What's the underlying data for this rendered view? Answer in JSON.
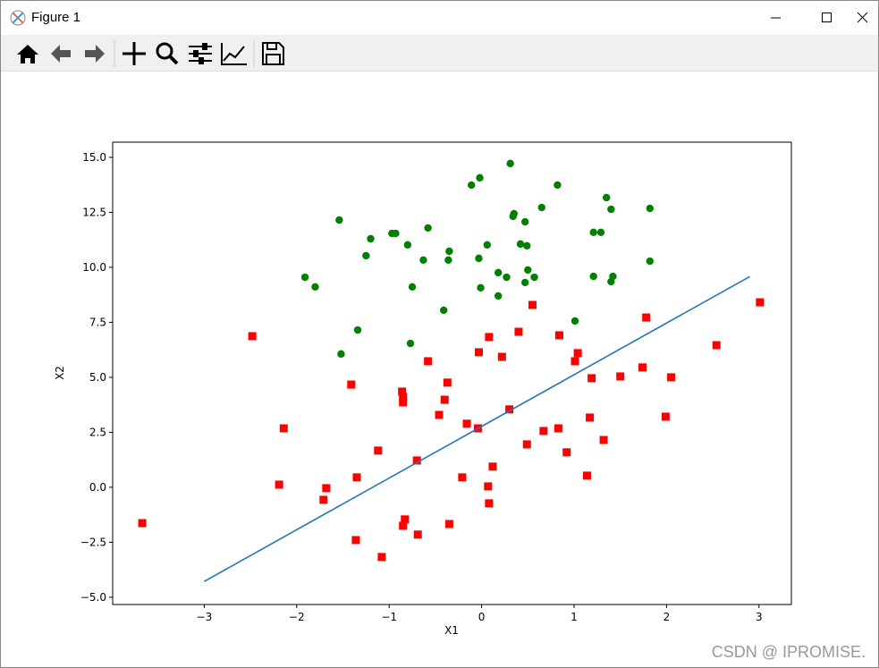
{
  "window": {
    "title": "Figure 1"
  },
  "watermark": "CSDN @ IPROMISE.",
  "chart_data": {
    "type": "scatter",
    "xlabel": "X1",
    "ylabel": "X2",
    "xlim": [
      -3.99,
      3.35
    ],
    "ylim": [
      -5.33,
      15.69
    ],
    "xticks": [
      {
        "value": -3,
        "label": "−3"
      },
      {
        "value": -2,
        "label": "−2"
      },
      {
        "value": -1,
        "label": "−1"
      },
      0,
      1,
      2,
      3
    ],
    "yticks": [
      {
        "value": -5,
        "label": "−5.0"
      },
      {
        "value": -2.5,
        "label": "−2.5"
      },
      {
        "value": 0,
        "label": "0.0"
      },
      {
        "value": 2.5,
        "label": "2.5"
      },
      {
        "value": 5,
        "label": "5.0"
      },
      {
        "value": 7.5,
        "label": "7.5"
      },
      {
        "value": 10,
        "label": "10.0"
      },
      {
        "value": 12.5,
        "label": "12.5"
      },
      {
        "value": 15,
        "label": "15.0"
      }
    ],
    "series": [
      {
        "type": "scatter",
        "marker": "circle",
        "color": "#008000",
        "x": [
          0.31,
          -0.11,
          -0.02,
          0.82,
          1.35,
          1.4,
          1.82,
          0.65,
          0.34,
          0.35,
          0.47,
          -1.54,
          -0.97,
          -0.93,
          -0.58,
          -1.2,
          -0.8,
          0.06,
          0.42,
          0.49,
          1.21,
          1.29,
          -1.25,
          -0.63,
          -0.35,
          -0.36,
          -0.03,
          1.82,
          0.18,
          0.5,
          0.27,
          0.57,
          0.47,
          1.21,
          1.42,
          1.4,
          -1.91,
          -1.8,
          -0.75,
          -0.01,
          0.18,
          -0.41,
          1.01,
          -1.34,
          -0.77,
          -1.52
        ],
        "y": [
          14.72,
          13.74,
          14.07,
          13.74,
          13.17,
          12.64,
          12.68,
          12.72,
          12.32,
          12.44,
          12.07,
          12.15,
          11.54,
          11.54,
          11.79,
          11.3,
          11.02,
          11.02,
          11.06,
          10.98,
          11.59,
          11.59,
          10.53,
          10.33,
          10.73,
          10.33,
          10.41,
          10.28,
          9.76,
          9.88,
          9.55,
          9.55,
          9.31,
          9.59,
          9.59,
          9.35,
          9.55,
          9.11,
          9.11,
          9.07,
          8.7,
          8.05,
          7.56,
          7.15,
          6.54,
          6.06
        ]
      },
      {
        "type": "scatter",
        "marker": "square",
        "color": "#ff0000",
        "x": [
          -3.67,
          -2.48,
          -2.14,
          -2.19,
          -1.71,
          -1.68,
          -1.41,
          -1.35,
          -1.36,
          -1.08,
          -1.12,
          -0.86,
          -0.85,
          -0.85,
          -0.83,
          -0.85,
          -0.7,
          -0.69,
          -0.58,
          -0.46,
          -0.4,
          -0.37,
          -0.35,
          -0.21,
          -0.16,
          -0.04,
          -0.03,
          0.08,
          0.22,
          0.07,
          0.08,
          0.12,
          0.3,
          0.4,
          0.49,
          0.55,
          0.67,
          0.84,
          0.83,
          0.92,
          1.01,
          1.04,
          1.14,
          1.17,
          1.19,
          1.32,
          1.5,
          1.74,
          1.78,
          1.99,
          2.05,
          2.54,
          3.01
        ],
        "y": [
          -1.63,
          6.87,
          2.68,
          0.12,
          -0.57,
          -0.04,
          4.67,
          0.45,
          -2.4,
          -3.17,
          1.67,
          4.35,
          4.11,
          3.86,
          -1.46,
          -1.75,
          1.22,
          -2.15,
          5.73,
          3.29,
          3.98,
          4.76,
          -1.67,
          0.45,
          2.89,
          2.68,
          6.14,
          6.83,
          5.93,
          0.04,
          -0.73,
          0.94,
          3.54,
          7.07,
          1.95,
          8.29,
          2.56,
          6.91,
          2.68,
          1.59,
          5.73,
          6.1,
          0.53,
          3.17,
          4.96,
          2.15,
          5.04,
          5.45,
          7.72,
          3.21,
          5.0,
          6.46,
          8.41
        ]
      },
      {
        "type": "line",
        "color": "#1f77b4",
        "x": [
          -3.0,
          2.9
        ],
        "y": [
          -4.28,
          9.58
        ]
      }
    ]
  }
}
